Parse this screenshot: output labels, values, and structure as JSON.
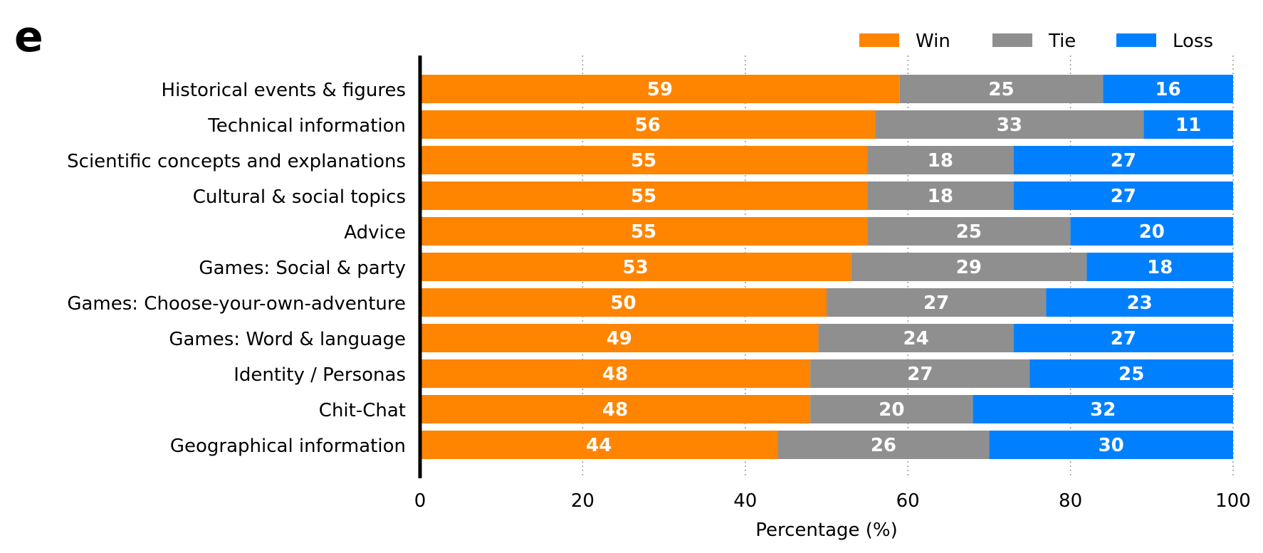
{
  "panel_letter": "e",
  "chart_data": {
    "type": "bar",
    "orientation": "horizontal",
    "stacked": true,
    "categories": [
      "Historical events & figures",
      "Technical information",
      "Scientific concepts and explanations",
      "Cultural & social topics",
      "Advice",
      "Games: Social & party",
      "Games: Choose-your-own-adventure",
      "Games: Word & language",
      "Identity / Personas",
      "Chit-Chat",
      "Geographical information"
    ],
    "series": [
      {
        "name": "Win",
        "color": "#ff8400",
        "values": [
          59,
          56,
          55,
          55,
          55,
          53,
          50,
          49,
          48,
          48,
          44
        ]
      },
      {
        "name": "Tie",
        "color": "#8f8f8f",
        "values": [
          25,
          33,
          18,
          18,
          25,
          29,
          27,
          24,
          27,
          20,
          26
        ]
      },
      {
        "name": "Loss",
        "color": "#0080ff",
        "values": [
          16,
          11,
          27,
          27,
          20,
          18,
          23,
          27,
          25,
          32,
          30
        ]
      }
    ],
    "xlabel": "Percentage (%)",
    "ylabel": "",
    "xlim": [
      0,
      100
    ],
    "xticks": [
      "0",
      "20",
      "40",
      "60",
      "80",
      "100"
    ],
    "grid": "vertical dotted",
    "legend_position": "top-right"
  }
}
